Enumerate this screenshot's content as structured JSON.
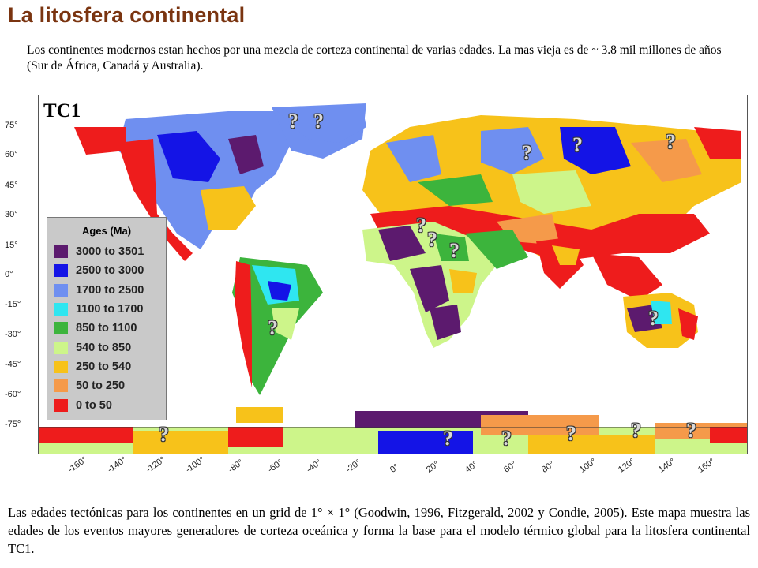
{
  "header": {
    "title": "La litosfera continental",
    "intro": "Los continentes modernos estan hechos por una mezcla de corteza continental de varias edades. La mas vieja es de ~ 3.8 mil millones de años (Sur de África, Canadá y Australia)."
  },
  "map": {
    "panel_tag": "TC1",
    "latitude_labels": [
      "75°",
      "60°",
      "45°",
      "30°",
      "15°",
      "0°",
      "-15°",
      "-30°",
      "-45°",
      "-60°",
      "-75°"
    ],
    "longitude_labels": [
      "-160°",
      "-140°",
      "-120°",
      "-100°",
      "-80°",
      "-60°",
      "-40°",
      "-20°",
      "0°",
      "20°",
      "40°",
      "60°",
      "80°",
      "100°",
      "120°",
      "140°",
      "160°"
    ],
    "question_mark": "?",
    "legend": {
      "title": "Ages (Ma)",
      "items": [
        {
          "label": "3000  to  3501",
          "color": "#5c1a6e"
        },
        {
          "label": "2500  to  3000",
          "color": "#1414e6"
        },
        {
          "label": "1700  to  2500",
          "color": "#6f8ff0"
        },
        {
          "label": "1100  to  1700",
          "color": "#2fe6f0"
        },
        {
          "label": "850  to  1100",
          "color": "#3cb43c"
        },
        {
          "label": "540  to  850",
          "color": "#cdf58a"
        },
        {
          "label": "250  to  540",
          "color": "#f7c21a"
        },
        {
          "label": "50  to  250",
          "color": "#f59a4a"
        },
        {
          "label": "0  to  50",
          "color": "#ee1c1c"
        }
      ]
    }
  },
  "caption": {
    "text": "Las edades tectónicas para los continentes en un grid de 1° × 1° (Goodwin, 1996, Fitzgerald, 2002 y Condie, 2005). Este mapa muestra las edades de los eventos mayores generadores de corteza oceánica y forma la base para el modelo térmico global para la litosfera continental TC1."
  }
}
